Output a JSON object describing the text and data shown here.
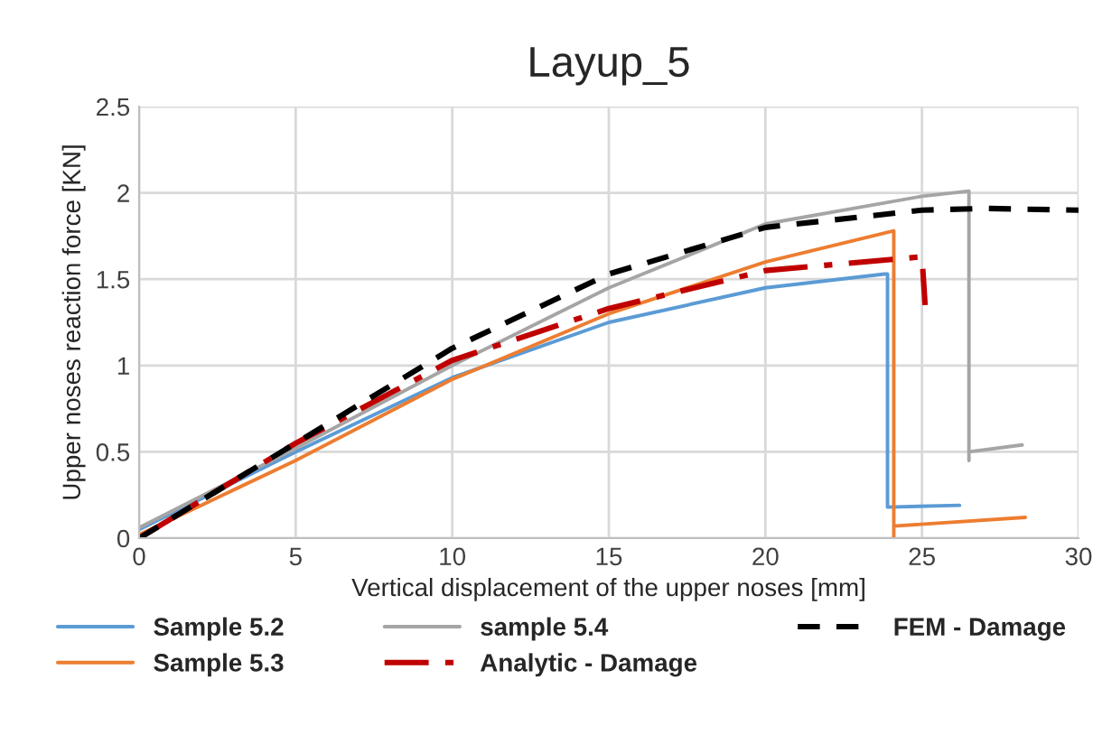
{
  "chart_data": {
    "type": "line",
    "title": "Layup_5",
    "xlabel": "Vertical displacement of the upper noses [mm]",
    "ylabel": "Upper noses reaction force [KN]",
    "xlim": [
      0,
      30
    ],
    "xticks": [
      0,
      5,
      10,
      15,
      20,
      25,
      30
    ],
    "ylim": [
      0,
      2.5
    ],
    "yticks": [
      0,
      0.5,
      1,
      1.5,
      2,
      2.5
    ],
    "grid": true,
    "legend": "bottom",
    "series": [
      {
        "name": "Sample 5.2",
        "color": "#5b9bd5",
        "line_style": "solid",
        "x": [
          0,
          5,
          10,
          15,
          20,
          23.8,
          23.9,
          23.9,
          26.2
        ],
        "values": [
          0.05,
          0.5,
          0.93,
          1.25,
          1.45,
          1.53,
          1.53,
          0.18,
          0.19
        ]
      },
      {
        "name": "Sample 5.3",
        "color": "#ed7d31",
        "line_style": "solid",
        "x": [
          0,
          5,
          10,
          15,
          20,
          24.1,
          24.1,
          24.1,
          28.3
        ],
        "values": [
          0.02,
          0.45,
          0.92,
          1.3,
          1.6,
          1.78,
          0,
          0.07,
          0.12
        ]
      },
      {
        "name": "sample 5.4",
        "color": "#a5a5a5",
        "line_style": "solid",
        "x": [
          0,
          5,
          10,
          15,
          20,
          25,
          26.5,
          26.5,
          26.5,
          28.2
        ],
        "values": [
          0.06,
          0.52,
          1.0,
          1.45,
          1.82,
          1.98,
          2.01,
          0.45,
          0.5,
          0.54
        ]
      },
      {
        "name": "Analytic - Damage",
        "color": "#c00000",
        "line_style": "dashdot",
        "x": [
          0,
          5,
          10,
          15,
          20,
          25,
          25.1
        ],
        "values": [
          0,
          0.55,
          1.03,
          1.33,
          1.55,
          1.63,
          1.35
        ]
      },
      {
        "name": "FEM - Damage",
        "color": "#000000",
        "line_style": "dashed",
        "x": [
          0,
          5,
          10,
          15,
          20,
          25,
          27,
          30
        ],
        "values": [
          0,
          0.55,
          1.1,
          1.53,
          1.8,
          1.9,
          1.91,
          1.9
        ]
      }
    ]
  }
}
